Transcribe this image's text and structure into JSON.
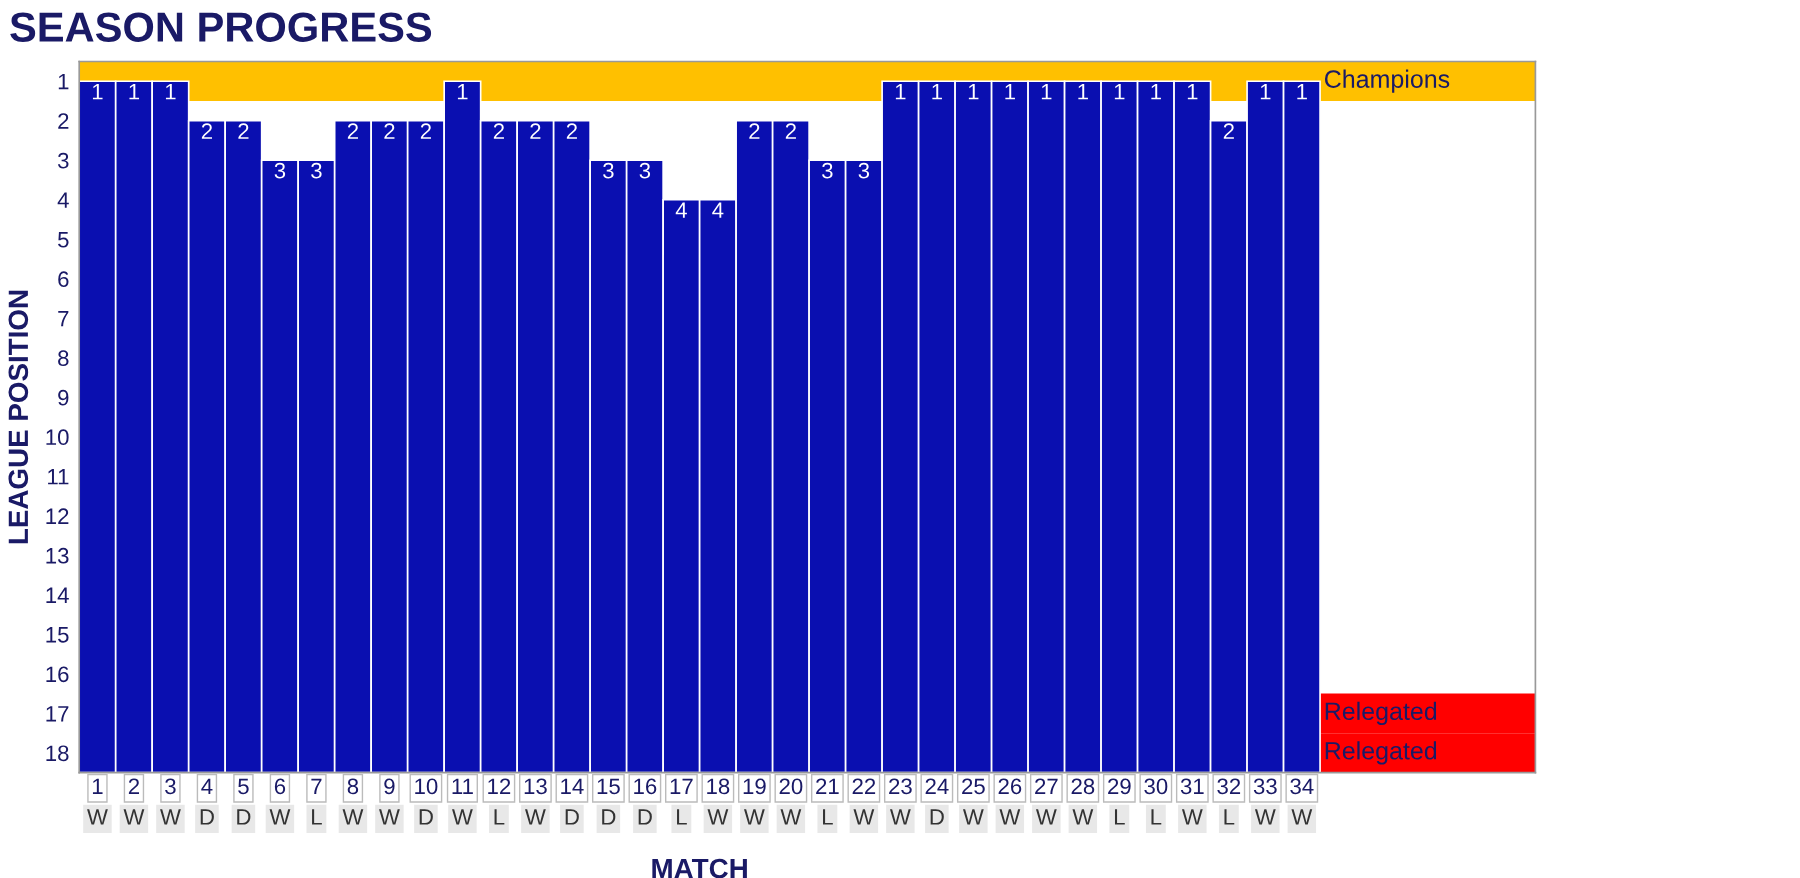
{
  "chart_data": {
    "type": "bar",
    "title": "SEASON PROGRESS",
    "xlabel": "MATCH",
    "ylabel": "LEAGUE POSITION",
    "categories": [
      "1",
      "2",
      "3",
      "4",
      "5",
      "6",
      "7",
      "8",
      "9",
      "10",
      "11",
      "12",
      "13",
      "14",
      "15",
      "16",
      "17",
      "18",
      "19",
      "20",
      "21",
      "22",
      "23",
      "24",
      "25",
      "26",
      "27",
      "28",
      "29",
      "30",
      "31",
      "32",
      "33",
      "34"
    ],
    "base": [
      18.5,
      18.5,
      18.5,
      18.5,
      18.5,
      18.5,
      18.5,
      18.5,
      18.5,
      18.5,
      18.5,
      18.5,
      18.5,
      18.5,
      18.5,
      18.5,
      18.5,
      18.5,
      18.5,
      18.5,
      18.5,
      18.5,
      18.5,
      18.5,
      18.5,
      18.5,
      18.5,
      18.5,
      18.5,
      18.5,
      18.5,
      18.5,
      18.5,
      18.5
    ],
    "values": [
      -17.5,
      -17.5,
      -17.5,
      -16.5,
      -16.5,
      -15.5,
      -15.5,
      -16.5,
      -16.5,
      -16.5,
      -17.5,
      -16.5,
      -16.5,
      -16.5,
      -15.5,
      -15.5,
      -14.5,
      -14.5,
      -16.5,
      -16.5,
      -15.5,
      -15.5,
      -17.5,
      -17.5,
      -17.5,
      -17.5,
      -17.5,
      -17.5,
      -17.5,
      -17.5,
      -17.5,
      -16.5,
      -17.5,
      -17.5
    ],
    "value_labels": [
      "1",
      "1",
      "1",
      "2",
      "2",
      "3",
      "3",
      "2",
      "2",
      "2",
      "1",
      "2",
      "2",
      "2",
      "3",
      "3",
      "4",
      "4",
      "2",
      "2",
      "3",
      "3",
      "1",
      "1",
      "1",
      "1",
      "1",
      "1",
      "1",
      "1",
      "1",
      "2",
      "1",
      "1"
    ],
    "color": "#0a0fb0",
    "ylim": [
      18.5,
      0.5
    ],
    "yticks": [
      1,
      2,
      3,
      4,
      5,
      6,
      7,
      8,
      9,
      10,
      11,
      12,
      13,
      14,
      15,
      16,
      17,
      18
    ],
    "bands": [
      {
        "axis": "y",
        "from": 0.5,
        "to": 1.5,
        "label": "Champions",
        "color": "#ffc000"
      },
      {
        "axis": "y",
        "from": 16.5,
        "to": 17.5,
        "label": "Relegated",
        "color": "#ff0000"
      },
      {
        "axis": "y",
        "from": 17.5,
        "to": 18.5,
        "label": "Relegated",
        "color": "#ff0000"
      }
    ],
    "annotations": [
      "W",
      "W",
      "W",
      "D",
      "D",
      "W",
      "L",
      "W",
      "W",
      "D",
      "W",
      "L",
      "W",
      "D",
      "D",
      "D",
      "L",
      "W",
      "W",
      "W",
      "L",
      "W",
      "W",
      "D",
      "W",
      "W",
      "W",
      "W",
      "L",
      "L",
      "W",
      "L",
      "W",
      "W"
    ],
    "grid": false,
    "legend": false
  }
}
